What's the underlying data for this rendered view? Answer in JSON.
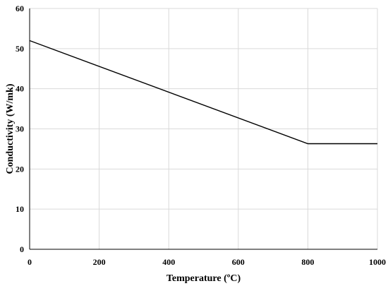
{
  "chart_data": {
    "type": "line",
    "title": "",
    "xlabel": "Temperature  (ºC)",
    "ylabel": "Conductivity   (W/mk)",
    "xlim": [
      0,
      1000
    ],
    "ylim": [
      0,
      60
    ],
    "xticks": [
      0,
      200,
      400,
      600,
      800,
      1000
    ],
    "yticks": [
      0,
      10,
      20,
      30,
      40,
      50,
      60
    ],
    "xtick_labels": [
      "0",
      "200",
      "400",
      "600",
      "800",
      "1000"
    ],
    "ytick_labels": [
      "0",
      "10",
      "20",
      "30",
      "40",
      "50",
      "60"
    ],
    "grid": true,
    "legend": "none",
    "series": [
      {
        "x": [
          0,
          800,
          1000
        ],
        "y": [
          52,
          26.3,
          26.3
        ],
        "color": "#000000"
      }
    ]
  }
}
